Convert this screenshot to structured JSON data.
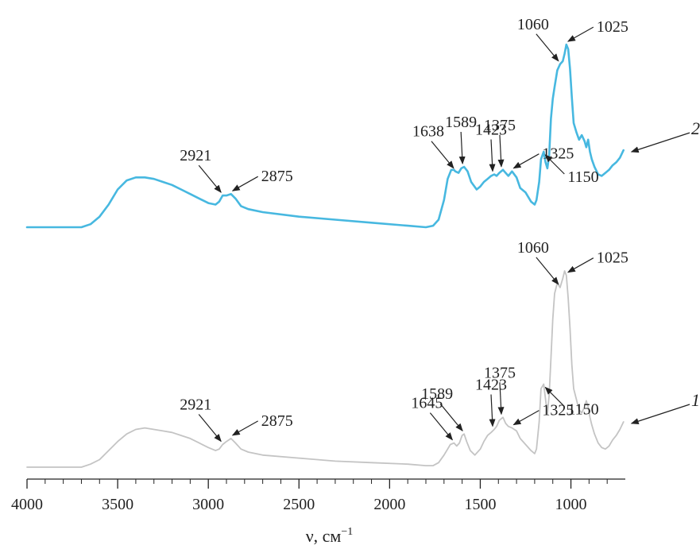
{
  "colors": {
    "series_2": "#47b8e0",
    "series_1": "#c4c4c4",
    "text": "#222222",
    "arrow": "#222222"
  },
  "chart_data": {
    "type": "line",
    "xlabel": "ν, см",
    "xlabel_superscript": "−1",
    "xlim": [
      4000,
      700
    ],
    "x_ticks": [
      4000,
      3500,
      3000,
      2500,
      2000,
      1500,
      1000
    ],
    "x_tick_labels": [
      "4000",
      "3500",
      "3000",
      "2500",
      "2000",
      "1500",
      "1000"
    ],
    "grid": false,
    "y_axis": "none",
    "series": [
      {
        "name": "2",
        "color": "#47b8e0",
        "x": [
          4000,
          3800,
          3700,
          3650,
          3600,
          3550,
          3500,
          3450,
          3400,
          3350,
          3300,
          3250,
          3200,
          3150,
          3100,
          3050,
          3000,
          2960,
          2940,
          2921,
          2900,
          2875,
          2850,
          2820,
          2780,
          2700,
          2500,
          2300,
          2100,
          1900,
          1800,
          1760,
          1730,
          1700,
          1680,
          1660,
          1645,
          1638,
          1620,
          1605,
          1589,
          1570,
          1550,
          1520,
          1500,
          1480,
          1460,
          1440,
          1423,
          1410,
          1395,
          1375,
          1360,
          1345,
          1325,
          1300,
          1280,
          1250,
          1220,
          1200,
          1190,
          1175,
          1165,
          1150,
          1140,
          1130,
          1120,
          1110,
          1100,
          1090,
          1075,
          1060,
          1045,
          1035,
          1025,
          1015,
          1005,
          995,
          985,
          970,
          955,
          940,
          925,
          915,
          905,
          895,
          885,
          870,
          850,
          830,
          810,
          790,
          770,
          750,
          730,
          710
        ],
        "y": [
          0.0,
          0.0,
          0.0,
          0.02,
          0.07,
          0.15,
          0.25,
          0.31,
          0.33,
          0.33,
          0.32,
          0.3,
          0.28,
          0.25,
          0.22,
          0.19,
          0.16,
          0.15,
          0.17,
          0.21,
          0.21,
          0.22,
          0.19,
          0.14,
          0.12,
          0.1,
          0.07,
          0.05,
          0.03,
          0.01,
          0.0,
          0.01,
          0.05,
          0.18,
          0.32,
          0.38,
          0.38,
          0.37,
          0.36,
          0.39,
          0.4,
          0.37,
          0.3,
          0.25,
          0.27,
          0.3,
          0.32,
          0.34,
          0.35,
          0.34,
          0.36,
          0.38,
          0.36,
          0.34,
          0.37,
          0.33,
          0.26,
          0.23,
          0.17,
          0.15,
          0.18,
          0.3,
          0.45,
          0.5,
          0.43,
          0.39,
          0.48,
          0.72,
          0.85,
          0.93,
          1.04,
          1.08,
          1.1,
          1.15,
          1.21,
          1.18,
          1.05,
          0.86,
          0.69,
          0.63,
          0.58,
          0.61,
          0.57,
          0.53,
          0.58,
          0.5,
          0.45,
          0.4,
          0.35,
          0.34,
          0.36,
          0.38,
          0.41,
          0.43,
          0.46,
          0.51
        ]
      },
      {
        "name": "1",
        "color": "#c4c4c4",
        "x": [
          4000,
          3800,
          3700,
          3650,
          3600,
          3550,
          3500,
          3450,
          3400,
          3350,
          3300,
          3250,
          3200,
          3150,
          3100,
          3050,
          3000,
          2960,
          2940,
          2921,
          2900,
          2875,
          2850,
          2820,
          2780,
          2700,
          2500,
          2300,
          2100,
          1900,
          1800,
          1760,
          1730,
          1700,
          1680,
          1665,
          1645,
          1630,
          1615,
          1600,
          1589,
          1575,
          1555,
          1530,
          1500,
          1480,
          1460,
          1440,
          1423,
          1410,
          1395,
          1375,
          1360,
          1345,
          1325,
          1300,
          1280,
          1250,
          1220,
          1200,
          1190,
          1175,
          1165,
          1150,
          1140,
          1130,
          1120,
          1110,
          1100,
          1090,
          1075,
          1060,
          1045,
          1035,
          1025,
          1015,
          1005,
          995,
          985,
          970,
          955,
          940,
          925,
          915,
          905,
          895,
          885,
          870,
          850,
          830,
          810,
          790,
          770,
          750,
          730,
          710
        ],
        "y": [
          0.0,
          0.0,
          0.0,
          0.02,
          0.05,
          0.11,
          0.17,
          0.22,
          0.25,
          0.26,
          0.25,
          0.24,
          0.23,
          0.21,
          0.19,
          0.16,
          0.13,
          0.11,
          0.12,
          0.15,
          0.17,
          0.19,
          0.16,
          0.12,
          0.1,
          0.08,
          0.06,
          0.04,
          0.03,
          0.02,
          0.01,
          0.01,
          0.03,
          0.08,
          0.12,
          0.15,
          0.16,
          0.14,
          0.16,
          0.21,
          0.22,
          0.17,
          0.11,
          0.08,
          0.12,
          0.17,
          0.21,
          0.23,
          0.25,
          0.27,
          0.31,
          0.33,
          0.29,
          0.27,
          0.26,
          0.24,
          0.19,
          0.15,
          0.11,
          0.09,
          0.12,
          0.3,
          0.52,
          0.55,
          0.45,
          0.35,
          0.48,
          0.72,
          0.98,
          1.15,
          1.22,
          1.19,
          1.25,
          1.3,
          1.27,
          1.12,
          0.92,
          0.68,
          0.52,
          0.45,
          0.38,
          0.36,
          0.4,
          0.44,
          0.4,
          0.33,
          0.28,
          0.22,
          0.16,
          0.13,
          0.12,
          0.14,
          0.18,
          0.21,
          0.25,
          0.3
        ]
      }
    ],
    "annotations": [
      {
        "series": "2",
        "label": "2921",
        "x": 2921,
        "label_side": "up-left"
      },
      {
        "series": "2",
        "label": "2875",
        "x": 2875,
        "label_side": "up-right"
      },
      {
        "series": "2",
        "label": "1638",
        "x": 1638,
        "label_side": "up-left"
      },
      {
        "series": "2",
        "label": "1589",
        "x": 1589,
        "label_side": "up"
      },
      {
        "series": "2",
        "label": "1423",
        "x": 1423,
        "label_side": "up"
      },
      {
        "series": "2",
        "label": "1375",
        "x": 1375,
        "label_side": "up"
      },
      {
        "series": "2",
        "label": "1325",
        "x": 1325,
        "label_side": "up-right"
      },
      {
        "series": "2",
        "label": "1150",
        "x": 1150,
        "label_side": "down-right"
      },
      {
        "series": "2",
        "label": "1060",
        "x": 1060,
        "label_side": "up-left"
      },
      {
        "series": "2",
        "label": "1025",
        "x": 1025,
        "label_side": "up-right"
      },
      {
        "series": "1",
        "label": "2921",
        "x": 2921,
        "label_side": "up-left"
      },
      {
        "series": "1",
        "label": "2875",
        "x": 2875,
        "label_side": "up-right"
      },
      {
        "series": "1",
        "label": "1645",
        "x": 1645,
        "label_side": "up-left"
      },
      {
        "series": "1",
        "label": "1589",
        "x": 1589,
        "label_side": "up-left"
      },
      {
        "series": "1",
        "label": "1423",
        "x": 1423,
        "label_side": "up"
      },
      {
        "series": "1",
        "label": "1375",
        "x": 1375,
        "label_side": "up"
      },
      {
        "series": "1",
        "label": "1325",
        "x": 1325,
        "label_side": "up-right"
      },
      {
        "series": "1",
        "label": "1150",
        "x": 1150,
        "label_side": "down-right"
      },
      {
        "series": "1",
        "label": "1060",
        "x": 1060,
        "label_side": "up-left"
      },
      {
        "series": "1",
        "label": "1025",
        "x": 1025,
        "label_side": "up-right"
      }
    ]
  }
}
